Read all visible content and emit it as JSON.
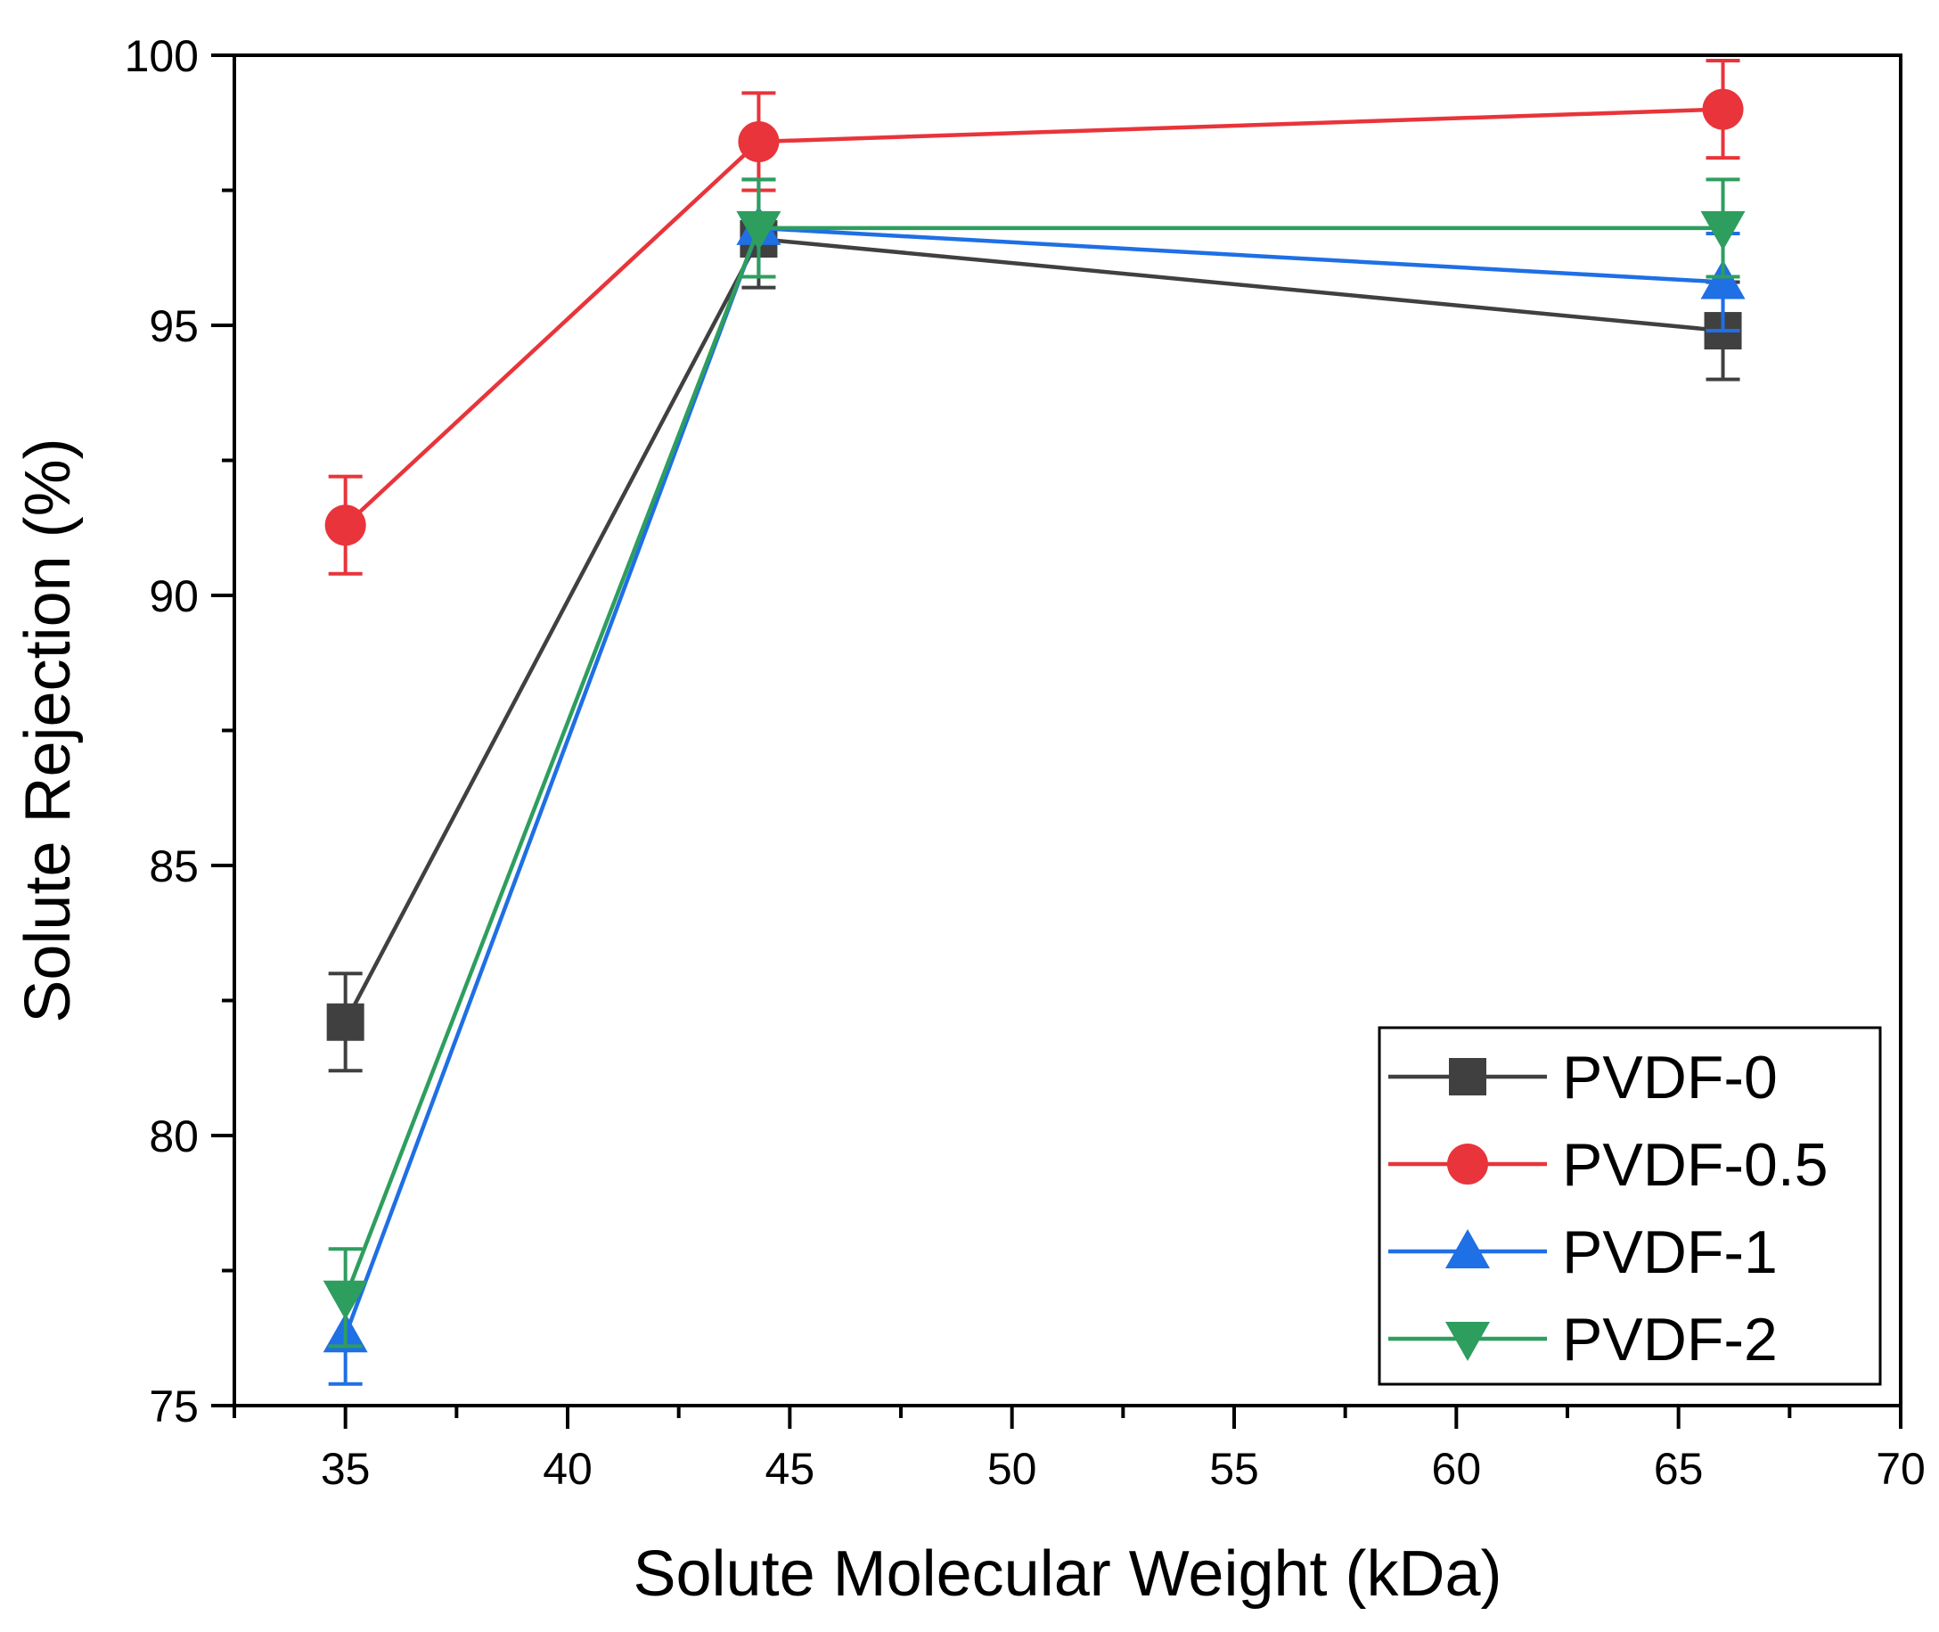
{
  "chart_data": {
    "type": "line",
    "title": "",
    "xlabel": "Solute Molecular Weight (kDa)",
    "ylabel": "Solute Rejection (%)",
    "xlim": [
      32.5,
      70
    ],
    "ylim": [
      75,
      100
    ],
    "x_ticks": [
      35,
      40,
      45,
      50,
      55,
      60,
      65,
      70
    ],
    "x_tick_labels": [
      "35",
      "40",
      "45",
      "50",
      "55",
      "60",
      "65",
      "70"
    ],
    "y_ticks": [
      75,
      80,
      85,
      90,
      95,
      100
    ],
    "y_tick_labels": [
      "75",
      "80",
      "85",
      "90",
      "95",
      "100"
    ],
    "x": [
      35,
      44.3,
      66
    ],
    "legend_position": "bottom-right",
    "grid": false,
    "series": [
      {
        "name": "PVDF-0",
        "color": "#404040",
        "marker": "square",
        "values": [
          82.1,
          96.6,
          94.9
        ],
        "errors": [
          0.9,
          0.9,
          0.9
        ]
      },
      {
        "name": "PVDF-0.5",
        "color": "#e8343a",
        "marker": "circle",
        "values": [
          91.3,
          98.4,
          99.0
        ],
        "errors": [
          0.9,
          0.9,
          0.9
        ]
      },
      {
        "name": "PVDF-1",
        "color": "#1f6fe5",
        "marker": "triangle-up",
        "values": [
          76.3,
          96.8,
          95.8
        ],
        "errors": [
          0.9,
          0.9,
          0.9
        ]
      },
      {
        "name": "PVDF-2",
        "color": "#2e9e5e",
        "marker": "triangle-down",
        "values": [
          77.0,
          96.8,
          96.8
        ],
        "errors": [
          0.9,
          0.9,
          0.9
        ]
      }
    ]
  }
}
